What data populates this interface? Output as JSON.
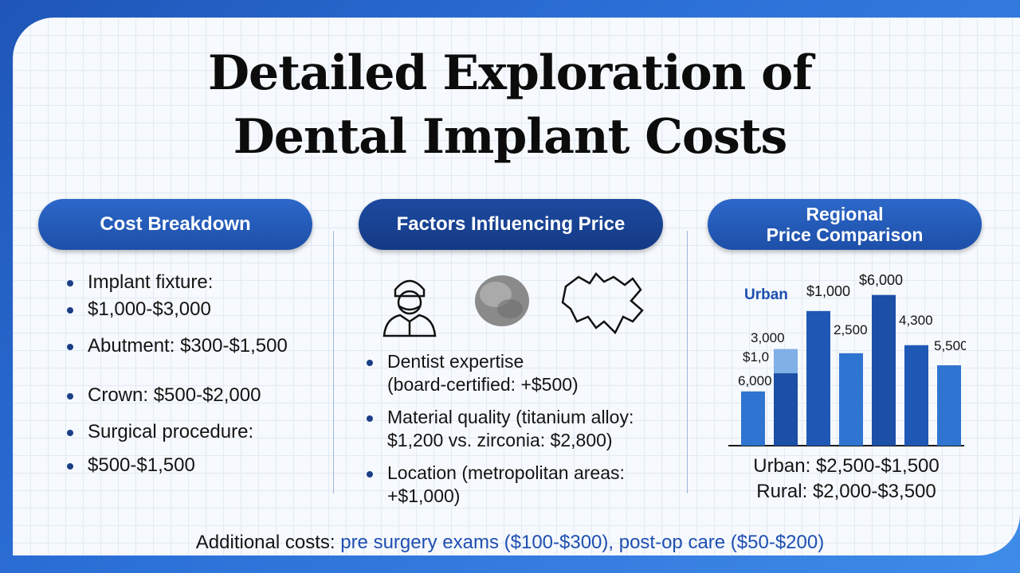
{
  "title": {
    "line1": "Detailed Exploration of",
    "line2": "Dental Implant Costs"
  },
  "sections": {
    "cost": {
      "heading": "Cost Breakdown",
      "items": [
        "Implant fixture:",
        "$1,000-$3,000",
        "Abutment: $300-$1,500",
        "Crown: $500-$2,000",
        "Surgical procedure:",
        "$500-$1,500"
      ]
    },
    "factors": {
      "heading": "Factors Influencing Price",
      "icons": [
        "dentist-icon",
        "material-sample-icon",
        "region-map-icon"
      ],
      "items": [
        {
          "line1": "Dentist expertise",
          "line2": "(board-certified: +$500)"
        },
        {
          "line1": "Material quality (titanium alloy:",
          "line2": "$1,200 vs. zirconia: $2,800)"
        },
        {
          "line1": "Location (metropolitan areas:",
          "line2": "+$1,000)"
        }
      ]
    },
    "regional": {
      "heading_line1": "Regional",
      "heading_line2": "Price Comparison",
      "urban_text": "Urban: $2,500-$1,500",
      "rural_text": "Rural: $2,000-$3,500"
    }
  },
  "chart_data": {
    "type": "bar",
    "labels": [
      "Urban",
      "$1,000",
      "$6,000",
      "3,000",
      "$1,0",
      "6,000",
      "2,500",
      "4,300",
      "5,500"
    ],
    "bars": [
      {
        "value": 2700,
        "color": "#2f74d0"
      },
      {
        "value": 4800,
        "color": "#1c4fa6",
        "highlight": 1200
      },
      {
        "value": 6700,
        "color": "#1f57b5"
      },
      {
        "value": 4600,
        "color": "#2f74d0"
      },
      {
        "value": 7500,
        "color": "#1c4fa6"
      },
      {
        "value": 5000,
        "color": "#1f57b5"
      },
      {
        "value": 4000,
        "color": "#2f74d0"
      }
    ],
    "ylim": [
      0,
      8000
    ],
    "colors": {
      "dark": "#1c4fa6",
      "light": "#2f74d0",
      "pale": "#7fb0e6"
    }
  },
  "footer": {
    "label": "Additional costs:",
    "detail": "pre surgery exams ($100-$300), post-op care ($50-$200)"
  }
}
